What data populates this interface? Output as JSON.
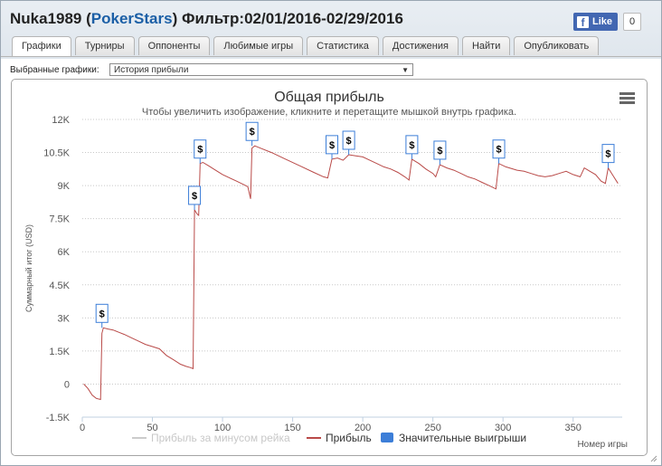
{
  "header": {
    "user": "Nuka1989",
    "site": "PokerStars",
    "filter_label": "Фильтр:",
    "date_range": "02/01/2016-02/29/2016"
  },
  "facebook": {
    "like_label": "Like",
    "count": "0"
  },
  "tabs": [
    {
      "label": "Графики",
      "active": true
    },
    {
      "label": "Турниры"
    },
    {
      "label": "Оппоненты"
    },
    {
      "label": "Любимые игры"
    },
    {
      "label": "Статистика"
    },
    {
      "label": "Достижения"
    },
    {
      "label": "Найти"
    },
    {
      "label": "Опубликовать"
    }
  ],
  "selector": {
    "label": "Выбранные графики:",
    "value": "История прибыли"
  },
  "icons": {
    "menu": "hamburger-menu-icon",
    "marker": "dollar-flag-icon",
    "resize": "resize-grip-icon"
  },
  "chart_data": {
    "type": "line",
    "title": "Общая прибыль",
    "subtitle": "Чтобы увеличить изображение, кликните и перетащите мышкой внутрь графика.",
    "xlabel": "Номер игры",
    "ylabel": "Суммарный итог (USD)",
    "xlim": [
      0,
      385
    ],
    "ylim": [
      -1500,
      12000
    ],
    "x_ticks": [
      0,
      50,
      100,
      150,
      200,
      250,
      300,
      350
    ],
    "y_ticks": [
      -1500,
      0,
      1500,
      3000,
      4500,
      6000,
      7500,
      9000,
      10500,
      12000
    ],
    "y_tick_labels": [
      "-1.5K",
      "0",
      "1.5K",
      "3K",
      "4.5K",
      "6K",
      "7.5K",
      "9K",
      "10.5K",
      "12K"
    ],
    "grid": true,
    "legend_position": "bottom",
    "legend": [
      {
        "name": "Прибыль за минусом рейка",
        "color": "#cccccc",
        "kind": "line"
      },
      {
        "name": "Прибыль",
        "color": "#b94a48",
        "kind": "line"
      },
      {
        "name": "Значительные выигрыши",
        "color": "#3c7ed8",
        "kind": "box"
      }
    ],
    "series": [
      {
        "name": "Прибыль",
        "color": "#b94a48",
        "points": [
          [
            1,
            0
          ],
          [
            4,
            -200
          ],
          [
            7,
            -500
          ],
          [
            10,
            -650
          ],
          [
            13,
            -700
          ],
          [
            14,
            2300
          ],
          [
            15,
            2550
          ],
          [
            18,
            2500
          ],
          [
            22,
            2450
          ],
          [
            26,
            2350
          ],
          [
            30,
            2250
          ],
          [
            35,
            2100
          ],
          [
            40,
            1950
          ],
          [
            45,
            1800
          ],
          [
            50,
            1700
          ],
          [
            55,
            1600
          ],
          [
            60,
            1300
          ],
          [
            65,
            1100
          ],
          [
            70,
            900
          ],
          [
            74,
            800
          ],
          [
            77,
            750
          ],
          [
            79,
            700
          ],
          [
            80,
            7900
          ],
          [
            81,
            7800
          ],
          [
            82,
            7700
          ],
          [
            83,
            7650
          ],
          [
            84,
            10000
          ],
          [
            86,
            10050
          ],
          [
            90,
            9900
          ],
          [
            95,
            9700
          ],
          [
            100,
            9500
          ],
          [
            105,
            9350
          ],
          [
            110,
            9200
          ],
          [
            115,
            9050
          ],
          [
            118,
            8950
          ],
          [
            120,
            8400
          ],
          [
            121,
            10700
          ],
          [
            123,
            10800
          ],
          [
            127,
            10700
          ],
          [
            135,
            10500
          ],
          [
            145,
            10200
          ],
          [
            155,
            9900
          ],
          [
            165,
            9600
          ],
          [
            172,
            9400
          ],
          [
            175,
            9350
          ],
          [
            178,
            10200
          ],
          [
            182,
            10250
          ],
          [
            186,
            10150
          ],
          [
            190,
            10400
          ],
          [
            195,
            10350
          ],
          [
            200,
            10300
          ],
          [
            205,
            10150
          ],
          [
            210,
            10000
          ],
          [
            215,
            9850
          ],
          [
            220,
            9750
          ],
          [
            225,
            9600
          ],
          [
            230,
            9400
          ],
          [
            233,
            9250
          ],
          [
            235,
            10200
          ],
          [
            240,
            10000
          ],
          [
            245,
            9750
          ],
          [
            250,
            9550
          ],
          [
            252,
            9400
          ],
          [
            255,
            9950
          ],
          [
            260,
            9800
          ],
          [
            265,
            9700
          ],
          [
            270,
            9550
          ],
          [
            275,
            9400
          ],
          [
            280,
            9300
          ],
          [
            285,
            9150
          ],
          [
            290,
            9000
          ],
          [
            295,
            8850
          ],
          [
            297,
            10000
          ],
          [
            302,
            9850
          ],
          [
            310,
            9700
          ],
          [
            315,
            9650
          ],
          [
            320,
            9550
          ],
          [
            325,
            9450
          ],
          [
            330,
            9400
          ],
          [
            335,
            9450
          ],
          [
            340,
            9550
          ],
          [
            345,
            9650
          ],
          [
            350,
            9500
          ],
          [
            355,
            9400
          ],
          [
            358,
            9800
          ],
          [
            362,
            9650
          ],
          [
            366,
            9500
          ],
          [
            370,
            9200
          ],
          [
            373,
            9100
          ],
          [
            375,
            9800
          ],
          [
            378,
            9500
          ],
          [
            382,
            9100
          ]
        ]
      }
    ],
    "markers": [
      {
        "x": 14,
        "y": 2550,
        "label": "$"
      },
      {
        "x": 80,
        "y": 7900,
        "label": "$"
      },
      {
        "x": 84,
        "y": 10000,
        "label": "$"
      },
      {
        "x": 121,
        "y": 10800,
        "label": "$"
      },
      {
        "x": 178,
        "y": 10200,
        "label": "$"
      },
      {
        "x": 190,
        "y": 10400,
        "label": "$"
      },
      {
        "x": 235,
        "y": 10200,
        "label": "$"
      },
      {
        "x": 255,
        "y": 9950,
        "label": "$"
      },
      {
        "x": 297,
        "y": 10000,
        "label": "$"
      },
      {
        "x": 375,
        "y": 9800,
        "label": "$"
      }
    ]
  }
}
